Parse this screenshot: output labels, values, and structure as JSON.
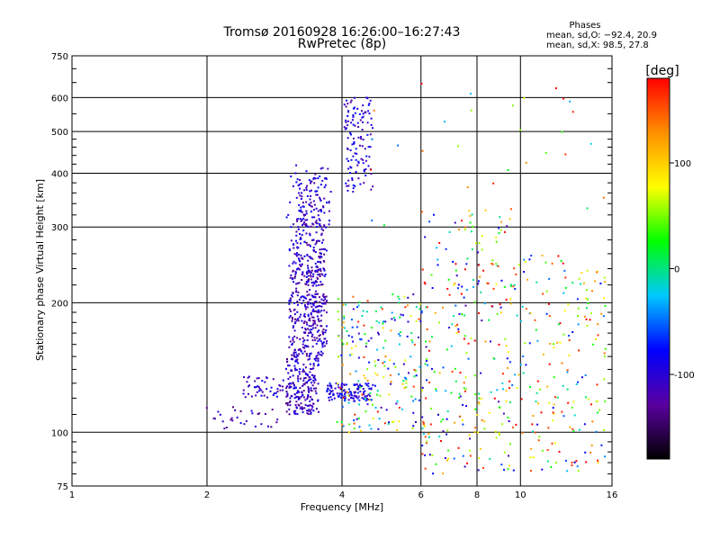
{
  "chart_data": {
    "type": "scatter",
    "title": "Tromsø 20160928 16:26:00–16:27:43",
    "subtitle": "RwPretec (8p)",
    "xlabel": "Frequency [MHz]",
    "ylabel": "Stationary phase Virtual Height [km]",
    "x_scale": "log",
    "y_scale": "log",
    "xlim": [
      1,
      16
    ],
    "ylim": [
      75,
      750
    ],
    "x_ticks": [
      1,
      2,
      4,
      6,
      8,
      10,
      16
    ],
    "y_ticks": [
      75,
      100,
      200,
      300,
      400,
      500,
      600,
      750
    ],
    "phase_stats": {
      "title": "Phases",
      "o_line": "mean, sd,O: −92.4, 20.9",
      "x_line": "mean, sd,X:  98.5, 27.8"
    },
    "colorbar": {
      "label": "[deg]",
      "min": -180,
      "max": 180,
      "ticks": [
        100,
        0,
        -100
      ],
      "colors": [
        "#000000",
        "#5a00a0",
        "#0000ff",
        "#00c8ff",
        "#00ff00",
        "#ffff00",
        "#ff9000",
        "#ff0000"
      ]
    },
    "series": [
      {
        "mode": "O",
        "phase_mean": -92.4,
        "clusters": [
          {
            "x": [
              3.0,
              3.55
            ],
            "y": [
              110,
              150
            ],
            "n": 200,
            "phase": -110
          },
          {
            "x": [
              3.05,
              3.7
            ],
            "y": [
              150,
              280
            ],
            "n": 420,
            "phase": -110
          },
          {
            "x": [
              3.15,
              3.75
            ],
            "y": [
              280,
              390
            ],
            "n": 120,
            "phase": -105
          },
          {
            "x": [
              3.7,
              4.7
            ],
            "y": [
              118,
              130
            ],
            "n": 120,
            "phase": -95
          },
          {
            "x": [
              4.05,
              4.7
            ],
            "y": [
              360,
              600
            ],
            "n": 120,
            "phase": -100
          },
          {
            "x": [
              2.4,
              3.2
            ],
            "y": [
              120,
              135
            ],
            "n": 60,
            "phase": -105
          },
          {
            "x": [
              1.95,
              2.9
            ],
            "y": [
              102,
              115
            ],
            "n": 30,
            "phase": -110
          },
          {
            "x": [
              3.0,
              3.8
            ],
            "y": [
              300,
              420
            ],
            "n": 40,
            "phase": -100
          }
        ]
      },
      {
        "mode": "X",
        "phase_mean": 98.5,
        "clusters": [
          {
            "x": [
              3.9,
              6.2
            ],
            "y": [
              100,
              210
            ],
            "n": 230,
            "phase": 30,
            "phase_spread": 150
          },
          {
            "x": [
              6.0,
              9.5
            ],
            "y": [
              80,
              330
            ],
            "n": 260,
            "phase": 40,
            "phase_spread": 160
          },
          {
            "x": [
              9.5,
              15.5
            ],
            "y": [
              80,
              260
            ],
            "n": 200,
            "phase": 60,
            "phase_spread": 150
          },
          {
            "x": [
              4.5,
              15.5
            ],
            "y": [
              300,
              650
            ],
            "n": 30,
            "phase": 80,
            "phase_spread": 130
          }
        ]
      }
    ],
    "grid": true,
    "legend": "none"
  }
}
